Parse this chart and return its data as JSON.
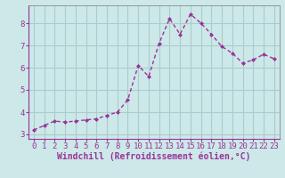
{
  "x": [
    0,
    1,
    2,
    3,
    4,
    5,
    6,
    7,
    8,
    9,
    10,
    11,
    12,
    13,
    14,
    15,
    16,
    17,
    18,
    19,
    20,
    21,
    22,
    23
  ],
  "y": [
    3.2,
    3.4,
    3.6,
    3.55,
    3.6,
    3.65,
    3.7,
    3.85,
    4.0,
    4.55,
    6.1,
    5.6,
    7.1,
    8.2,
    7.5,
    8.4,
    8.0,
    7.5,
    6.95,
    6.65,
    6.2,
    6.35,
    6.6,
    6.4
  ],
  "line_color": "#993399",
  "marker": "D",
  "marker_size": 2.0,
  "background_color": "#cce8e8",
  "grid_color": "#aacccc",
  "xlabel": "Windchill (Refroidissement éolien,°C)",
  "xlim": [
    -0.5,
    23.5
  ],
  "ylim": [
    2.8,
    8.8
  ],
  "yticks": [
    3,
    4,
    5,
    6,
    7,
    8
  ],
  "xticks": [
    0,
    1,
    2,
    3,
    4,
    5,
    6,
    7,
    8,
    9,
    10,
    11,
    12,
    13,
    14,
    15,
    16,
    17,
    18,
    19,
    20,
    21,
    22,
    23
  ],
  "tick_font_size": 6.5,
  "label_font_size": 7.0,
  "line_width": 1.0,
  "spine_color": "#888888"
}
